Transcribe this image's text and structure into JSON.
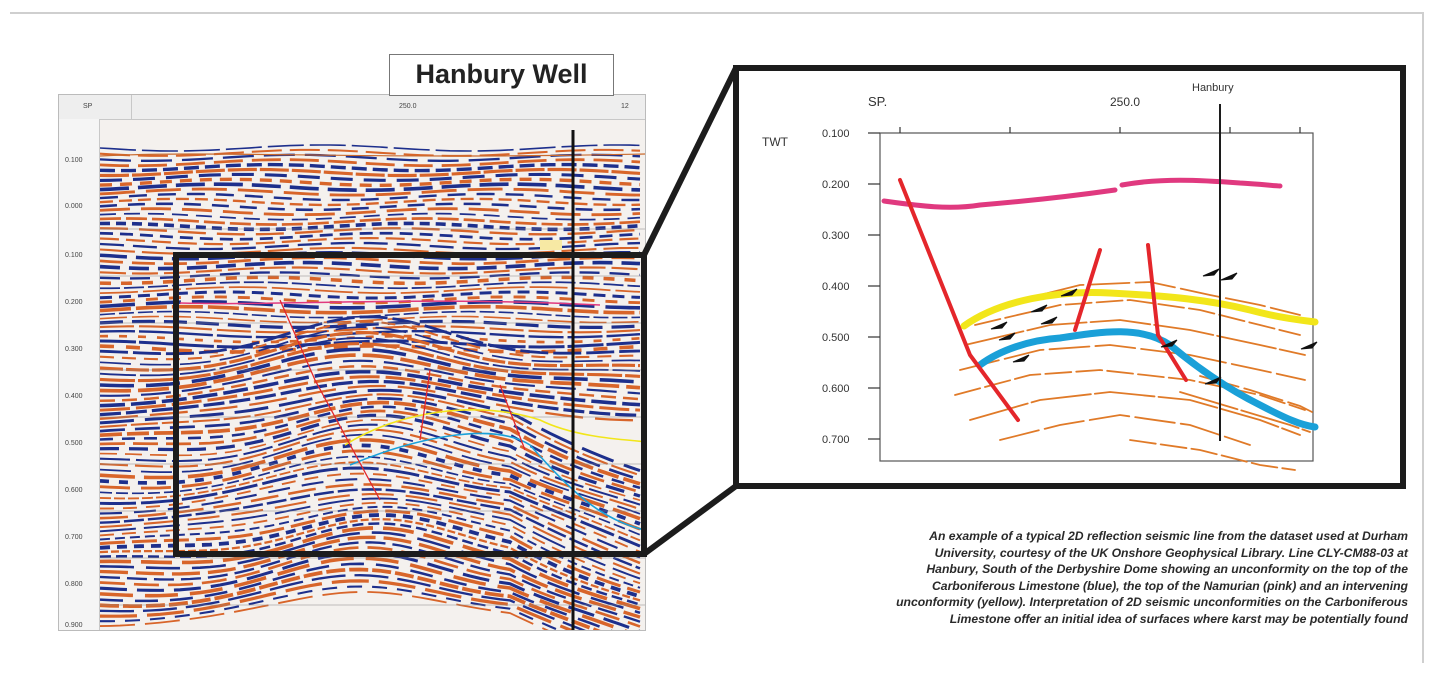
{
  "figure": {
    "title": "Hanbury Well",
    "seismic": {
      "sp_label": "SP",
      "sp_mid": "250.0",
      "sp_right": "12",
      "time_ticks": [
        "0.100",
        "0.000",
        "0.100",
        "0.200",
        "0.300",
        "0.400",
        "0.500",
        "0.600",
        "0.700",
        "0.800",
        "0.900"
      ]
    },
    "interpretation": {
      "sp_label": "SP.",
      "sp_value": "250.0",
      "well_label": "Hanbury",
      "y_axis_label": "TWT",
      "y_ticks": [
        "0.100",
        "0.200",
        "0.300",
        "0.400",
        "0.500",
        "0.600",
        "0.700"
      ]
    },
    "colors": {
      "namurian_top": "#e0397f",
      "intervening_unconformity": "#f2e61a",
      "carboniferous_limestone_top": "#1aa0d8",
      "faults": "#e4262b",
      "reflectors": "#e07a28",
      "zoom_frame": "#1c1c1c"
    }
  },
  "caption": {
    "lines": [
      "An example of a typical 2D reflection seismic line from the dataset used at Durham",
      "University, courtesy of the UK Onshore Geophysical Library. Line CLY-CM88-03 at",
      "Hanbury, South of the Derbyshire Dome showing an unconformity on the top of the",
      "Carboniferous Limestone (blue), the top of the Namurian (pink) and an intervening",
      "unconformity (yellow). Interpretation of 2D seismic unconformities on the Carboniferous",
      "Limestone offer an initial idea of surfaces where karst may be potentially found"
    ]
  }
}
